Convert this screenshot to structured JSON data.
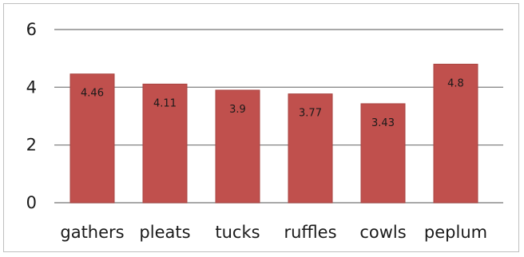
{
  "chart_data": {
    "type": "bar",
    "categories": [
      "gathers",
      "pleats",
      "tucks",
      "ruffles",
      "cowls",
      "peplum"
    ],
    "values": [
      4.46,
      4.11,
      3.9,
      3.77,
      3.43,
      4.8
    ],
    "value_labels": [
      "4.46",
      "4.11",
      "3.9",
      "3.77",
      "3.43",
      "4.8"
    ],
    "ylim": [
      0,
      6
    ],
    "yticks": [
      0,
      2,
      4,
      6
    ],
    "ytick_labels": [
      "0",
      "2",
      "4",
      "6"
    ],
    "grid": true,
    "legend": "none",
    "bar_color": "#c0504d",
    "bar_edge_color": "#a94542",
    "grid_color": "#8c8c8c"
  }
}
